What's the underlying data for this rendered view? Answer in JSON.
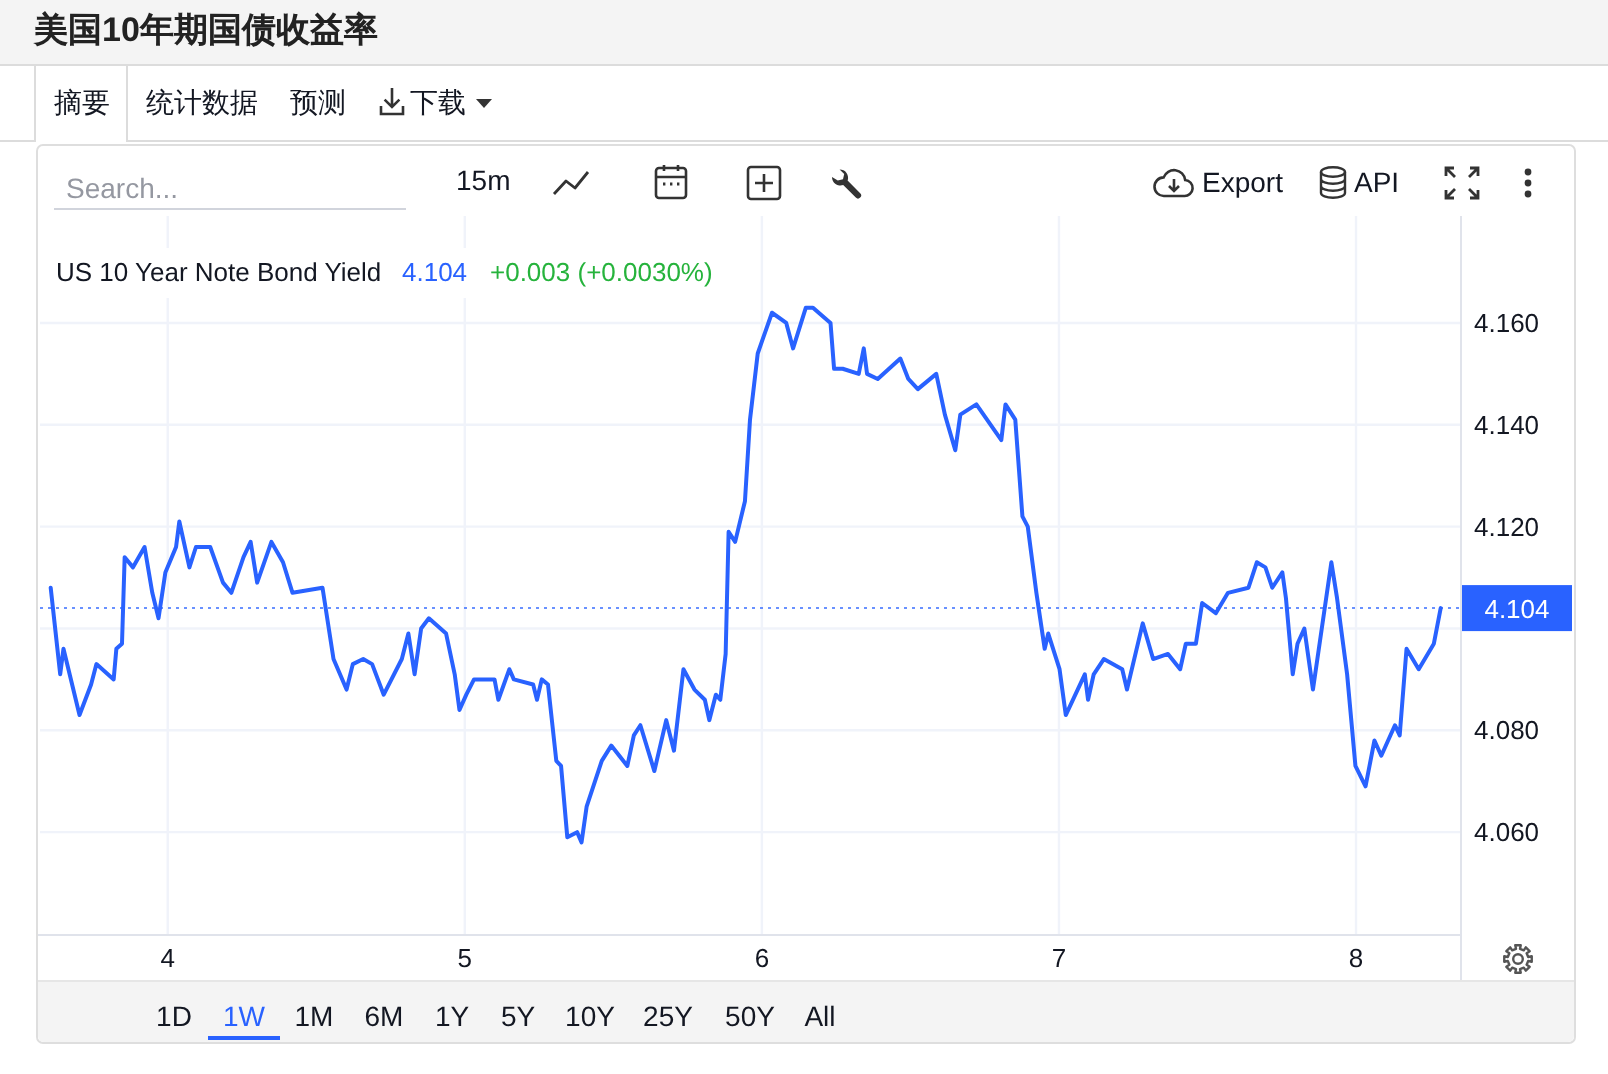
{
  "chart_data": {
    "type": "line",
    "title": "美国10年期国债收益率",
    "subtitle": "US 10 Year Note Bond Yield",
    "annotations": [
      "4.104",
      "+0.003 (+0.0030%)",
      "摘要",
      "统计数据",
      "预测",
      "下载",
      "Search...",
      "15m",
      "Export",
      "API",
      "1D",
      "1W",
      "1M",
      "6M",
      "1Y",
      "5Y",
      "10Y",
      "25Y",
      "50Y",
      "All"
    ],
    "x": [
      3.606,
      3.638,
      3.649,
      3.703,
      3.742,
      3.76,
      3.818,
      3.827,
      3.846,
      3.855,
      3.883,
      3.922,
      3.948,
      3.969,
      3.992,
      4.028,
      4.039,
      4.073,
      4.095,
      4.143,
      4.186,
      4.214,
      4.255,
      4.279,
      4.301,
      4.349,
      4.388,
      4.42,
      4.521,
      4.558,
      4.602,
      4.623,
      4.658,
      4.688,
      4.727,
      4.788,
      4.81,
      4.831,
      4.853,
      4.879,
      4.937,
      4.966,
      4.982,
      5.005,
      5.031,
      5.1,
      5.113,
      5.15,
      5.165,
      5.23,
      5.243,
      5.259,
      5.28,
      5.308,
      5.324,
      5.345,
      5.378,
      5.393,
      5.41,
      5.461,
      5.493,
      5.547,
      5.569,
      5.591,
      5.638,
      5.678,
      5.704,
      5.736,
      5.773,
      5.808,
      5.823,
      5.845,
      5.86,
      5.878,
      5.888,
      5.91,
      5.943,
      5.96,
      5.986,
      6.004,
      6.034,
      6.082,
      6.105,
      6.148,
      6.172,
      6.231,
      6.243,
      6.272,
      6.326,
      6.343,
      6.354,
      6.39,
      6.466,
      6.493,
      6.525,
      6.587,
      6.616,
      6.651,
      6.668,
      6.722,
      6.806,
      6.82,
      6.853,
      6.877,
      6.895,
      6.924,
      6.952,
      6.964,
      7.002,
      7.023,
      7.087,
      7.098,
      7.117,
      7.151,
      7.213,
      7.229,
      7.282,
      7.317,
      7.367,
      7.408,
      7.427,
      7.461,
      7.482,
      7.528,
      7.569,
      7.638,
      7.666,
      7.695,
      7.718,
      7.752,
      7.764,
      7.787,
      7.803,
      7.826,
      7.855,
      7.917,
      7.936,
      7.97,
      7.998,
      8.032,
      8.062,
      8.085,
      8.131,
      8.147,
      8.17,
      8.211,
      8.262,
      8.285
    ],
    "values": [
      4.108,
      4.091,
      4.096,
      4.083,
      4.089,
      4.093,
      4.09,
      4.096,
      4.097,
      4.114,
      4.112,
      4.116,
      4.107,
      4.102,
      4.111,
      4.116,
      4.121,
      4.112,
      4.116,
      4.116,
      4.109,
      4.107,
      4.114,
      4.117,
      4.109,
      4.117,
      4.113,
      4.107,
      4.108,
      4.094,
      4.088,
      4.093,
      4.094,
      4.093,
      4.087,
      4.094,
      4.099,
      4.091,
      4.1,
      4.102,
      4.099,
      4.091,
      4.084,
      4.087,
      4.09,
      4.09,
      4.086,
      4.092,
      4.09,
      4.089,
      4.086,
      4.09,
      4.089,
      4.074,
      4.073,
      4.059,
      4.06,
      4.058,
      4.065,
      4.074,
      4.077,
      4.073,
      4.079,
      4.081,
      4.072,
      4.082,
      4.076,
      4.092,
      4.088,
      4.086,
      4.082,
      4.087,
      4.086,
      4.095,
      4.119,
      4.117,
      4.125,
      4.141,
      4.154,
      4.157,
      4.162,
      4.16,
      4.155,
      4.163,
      4.163,
      4.16,
      4.151,
      4.151,
      4.15,
      4.155,
      4.15,
      4.149,
      4.153,
      4.149,
      4.147,
      4.15,
      4.142,
      4.135,
      4.142,
      4.144,
      4.137,
      4.144,
      4.141,
      4.122,
      4.12,
      4.107,
      4.096,
      4.099,
      4.092,
      4.083,
      4.091,
      4.086,
      4.091,
      4.094,
      4.092,
      4.088,
      4.101,
      4.094,
      4.095,
      4.092,
      4.097,
      4.097,
      4.105,
      4.103,
      4.107,
      4.108,
      4.113,
      4.112,
      4.108,
      4.111,
      4.106,
      4.091,
      4.097,
      4.1,
      4.088,
      4.113,
      4.106,
      4.091,
      4.073,
      4.069,
      4.078,
      4.075,
      4.081,
      4.079,
      4.096,
      4.092,
      4.097,
      4.104
    ],
    "color": "#2962ff",
    "line_style": "solid",
    "xlim": [
      3.57,
      8.35
    ],
    "xticks": [
      4,
      5,
      6,
      7,
      8
    ],
    "ylim": [
      4.04,
      4.181
    ],
    "yticks": [
      {
        "value": 4.06,
        "label": "4.060"
      },
      {
        "value": 4.08,
        "label": "4.080"
      },
      {
        "value": 4.1,
        "label": null
      },
      {
        "value": 4.12,
        "label": "4.120"
      },
      {
        "value": 4.14,
        "label": "4.140"
      },
      {
        "value": 4.16,
        "label": "4.160"
      }
    ],
    "grid": true,
    "ref_lines": [
      {
        "axis": "y",
        "value": 4.104,
        "label": "4.104",
        "color": "#2962ff",
        "line_style": "dotted"
      }
    ]
  }
}
